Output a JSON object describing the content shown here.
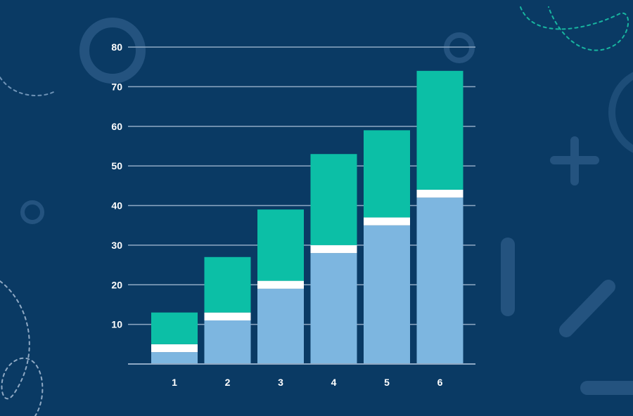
{
  "chart_data": {
    "type": "bar",
    "stacked": true,
    "categories": [
      "1",
      "2",
      "3",
      "4",
      "5",
      "6"
    ],
    "series": [
      {
        "values": [
          3,
          11,
          19,
          28,
          35,
          42
        ]
      },
      {
        "values": [
          2,
          2,
          2,
          2,
          2,
          2
        ]
      },
      {
        "values": [
          8,
          14,
          18,
          23,
          22,
          30
        ]
      }
    ],
    "y_ticks": [
      "10",
      "20",
      "30",
      "40",
      "50",
      "60",
      "70",
      "80"
    ],
    "ylim": [
      0,
      80
    ],
    "grid": true,
    "legend": "none",
    "title": "",
    "xlabel": "",
    "ylabel": ""
  },
  "colors": {
    "background": "#0a3a64",
    "grid": "#8fa9c4",
    "bottom_segment": "#7db6e0",
    "separator": "#ffffff",
    "top_segment": "#0cbfa6",
    "decor": "#2a5a86"
  }
}
